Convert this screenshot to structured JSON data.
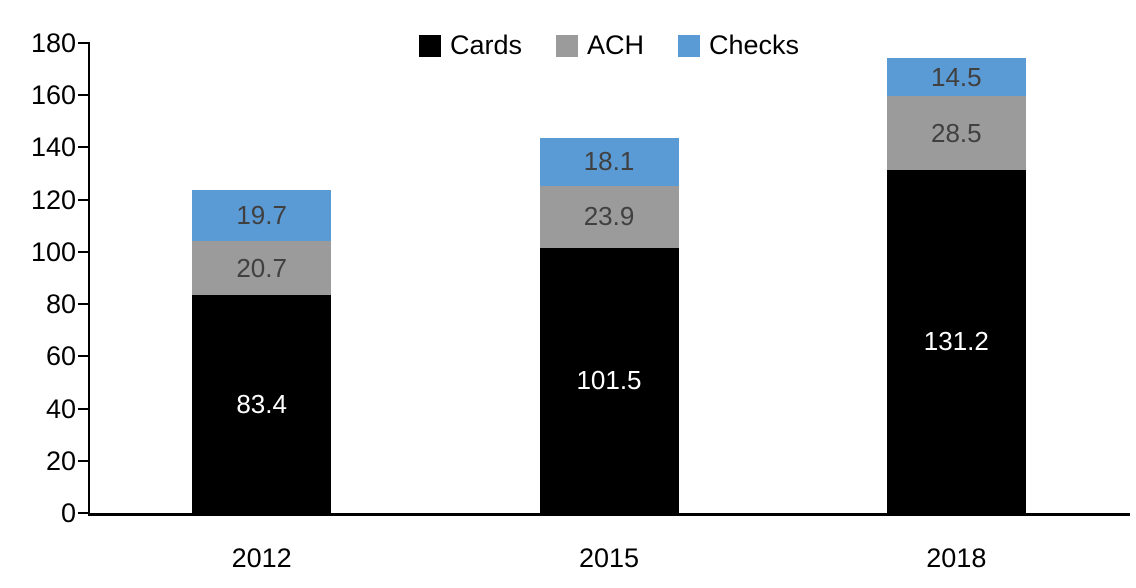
{
  "chart_data": {
    "type": "bar",
    "stacked": true,
    "title": "",
    "categories": [
      "2012",
      "2015",
      "2018"
    ],
    "series": [
      {
        "name": "Cards",
        "color": "#000000",
        "label_color": "#ffffff",
        "values": [
          83.4,
          101.5,
          131.2
        ]
      },
      {
        "name": "ACH",
        "color": "#9b9b9b",
        "label_color": "#404040",
        "values": [
          20.7,
          23.9,
          28.5
        ]
      },
      {
        "name": "Checks",
        "color": "#5b9bd5",
        "label_color": "#404040",
        "values": [
          19.7,
          18.1,
          14.5
        ]
      }
    ],
    "ylim": [
      0,
      180
    ],
    "yticks": [
      0,
      20,
      40,
      60,
      80,
      100,
      120,
      140,
      160,
      180
    ],
    "grid": false,
    "legend_position": "top-center",
    "data_labels": true,
    "axis_color": "#000000",
    "background_color": "#ffffff"
  }
}
